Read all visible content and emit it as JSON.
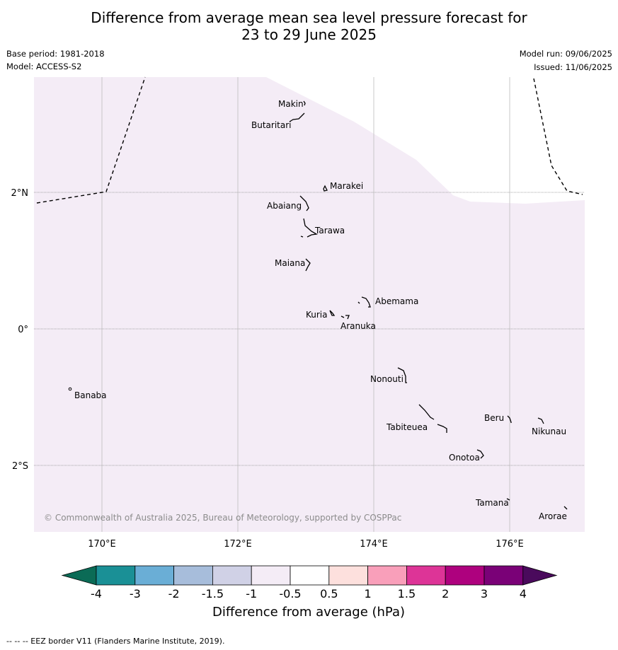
{
  "title_line1": "Difference from average mean sea level pressure forecast for",
  "title_line2": "23 to 29 June 2025",
  "base_period": "Base period: 1981-2018",
  "model": "Model: ACCESS-S2",
  "model_run": "Model run: 09/06/2025",
  "issued": "Issued: 11/06/2025",
  "copyright": "© Commonwealth of Australia 2025, Bureau of Meteorology, supported by COSPPac",
  "footer_note": "-- -- -- EEZ border V11 (Flanders Marine Institute, 2019).",
  "map": {
    "lon_range": [
      169,
      177.1
    ],
    "lat_range": [
      -3.0,
      3.7
    ],
    "lon_ticks": [
      "170°E",
      "172°E",
      "174°E",
      "176°E"
    ],
    "lat_ticks": [
      "2°N",
      "0°",
      "2°S"
    ],
    "background_color": "#ffffff",
    "region_fill": "#f4ecf6",
    "islands": [
      {
        "name": "Makin",
        "lon": 173.0,
        "lat": 3.3
      },
      {
        "name": "Butaritari",
        "lon": 172.9,
        "lat": 3.1
      },
      {
        "name": "Marakei",
        "lon": 173.3,
        "lat": 2.0
      },
      {
        "name": "Abaiang",
        "lon": 173.0,
        "lat": 1.8
      },
      {
        "name": "Tarawa",
        "lon": 173.1,
        "lat": 1.4
      },
      {
        "name": "Maiana",
        "lon": 173.0,
        "lat": 0.95
      },
      {
        "name": "Abemama",
        "lon": 173.9,
        "lat": 0.4
      },
      {
        "name": "Kuria",
        "lon": 173.4,
        "lat": 0.22
      },
      {
        "name": "Aranuka",
        "lon": 173.6,
        "lat": 0.17
      },
      {
        "name": "Nonouti",
        "lon": 174.4,
        "lat": -0.7
      },
      {
        "name": "Banaba",
        "lon": 169.55,
        "lat": -0.87
      },
      {
        "name": "Tabiteuea",
        "lon": 174.8,
        "lat": -1.35
      },
      {
        "name": "Beru",
        "lon": 176.0,
        "lat": -1.33
      },
      {
        "name": "Nikunau",
        "lon": 176.45,
        "lat": -1.37
      },
      {
        "name": "Onotoa",
        "lon": 175.55,
        "lat": -1.8
      },
      {
        "name": "Tamana",
        "lon": 175.98,
        "lat": -2.5
      },
      {
        "name": "Arorae",
        "lon": 176.8,
        "lat": -2.63
      }
    ]
  },
  "colorbar": {
    "label": "Difference from average (hPa)",
    "tick_labels": [
      "-4",
      "-3",
      "-2",
      "-1.5",
      "-1",
      "-0.5",
      "0.5",
      "1",
      "1.5",
      "2",
      "3",
      "4"
    ],
    "under_color": "#0b6b56",
    "over_color": "#4a0a5c",
    "colors": [
      "#1a9096",
      "#6aaed6",
      "#a7bddb",
      "#d0d1e6",
      "#f4ecf6",
      "#ffffff",
      "#fde0dd",
      "#f99fba",
      "#dd3497",
      "#ae017e",
      "#7a0177"
    ]
  }
}
